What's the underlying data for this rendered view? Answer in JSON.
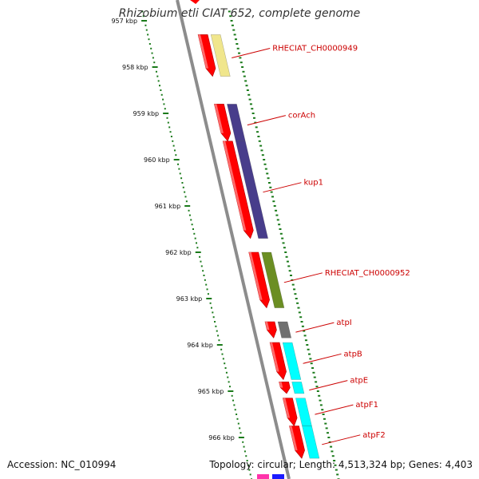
{
  "title": "Rhizobium etli CIAT 652, complete genome",
  "accession_text": "Accession: NC_010994",
  "summary_text": "Topology: circular; Length: 4,513,324 bp; Genes: 4,403",
  "colors": {
    "backbone": "#8c8c8c",
    "cds": "#ff0000",
    "tick": "#1a7a1a",
    "label": "#cc0000",
    "cog_pale_yellow": "#f0e68c",
    "cog_purple": "#483d8b",
    "cog_olive": "#6b8e23",
    "cog_gray": "#707070",
    "cog_cyan": "#00ffff"
  },
  "ruler": {
    "unit": "kbp",
    "labels": [
      "957 kbp",
      "958 kbp",
      "959 kbp",
      "960 kbp",
      "961 kbp",
      "962 kbp",
      "963 kbp",
      "964 kbp",
      "965 kbp",
      "966 kbp"
    ]
  },
  "genes": [
    {
      "label": "RHECIAT_CH0000949",
      "start_kbp": 957.3,
      "end_kbp": 958.2,
      "cog_color": "#f0e68c"
    },
    {
      "label": "corAch",
      "start_kbp": 958.8,
      "end_kbp": 959.6,
      "cog_color": "#483d8b"
    },
    {
      "label": "kup1",
      "start_kbp": 959.6,
      "end_kbp": 961.7,
      "cog_color": "#483d8b"
    },
    {
      "label": "RHECIAT_CH0000952",
      "start_kbp": 962.0,
      "end_kbp": 963.2,
      "cog_color": "#6b8e23"
    },
    {
      "label": "atpI",
      "start_kbp": 963.5,
      "end_kbp": 963.85,
      "cog_color": "#707070"
    },
    {
      "label": "atpB",
      "start_kbp": 963.95,
      "end_kbp": 964.75,
      "cog_color": "#00ffff"
    },
    {
      "label": "atpE",
      "start_kbp": 964.8,
      "end_kbp": 965.05,
      "cog_color": "#00ffff"
    },
    {
      "label": "atpF1",
      "start_kbp": 965.15,
      "end_kbp": 965.75,
      "cog_color": "#00ffff"
    },
    {
      "label": "atpF2",
      "start_kbp": 965.75,
      "end_kbp": 966.45,
      "cog_color": "#00ffff"
    }
  ]
}
